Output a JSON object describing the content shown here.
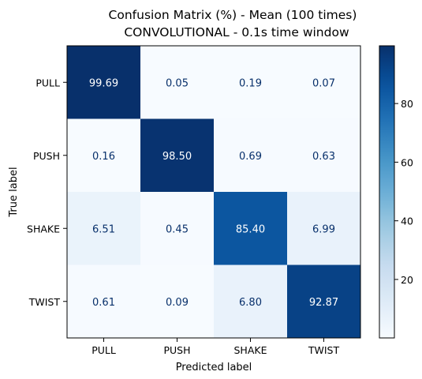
{
  "chart_data": {
    "type": "heatmap",
    "title_line1": "Confusion Matrix (%) - Mean (100 times)",
    "title_line2": "CONVOLUTIONAL - 0.1s time window",
    "xlabel": "Predicted label",
    "ylabel": "True label",
    "x_categories": [
      "PULL",
      "PUSH",
      "SHAKE",
      "TWIST"
    ],
    "y_categories": [
      "PULL",
      "PUSH",
      "SHAKE",
      "TWIST"
    ],
    "values": [
      [
        "99.69",
        "0.05",
        "0.19",
        "0.07"
      ],
      [
        "0.16",
        "98.50",
        "0.69",
        "0.63"
      ],
      [
        "6.51",
        "0.45",
        "85.40",
        "6.99"
      ],
      [
        "0.61",
        "0.09",
        "6.80",
        "92.87"
      ]
    ],
    "colormap": "Blues",
    "color_range": [
      0.05,
      99.69
    ],
    "colorbar_ticks": [
      "20",
      "40",
      "60",
      "80"
    ]
  }
}
